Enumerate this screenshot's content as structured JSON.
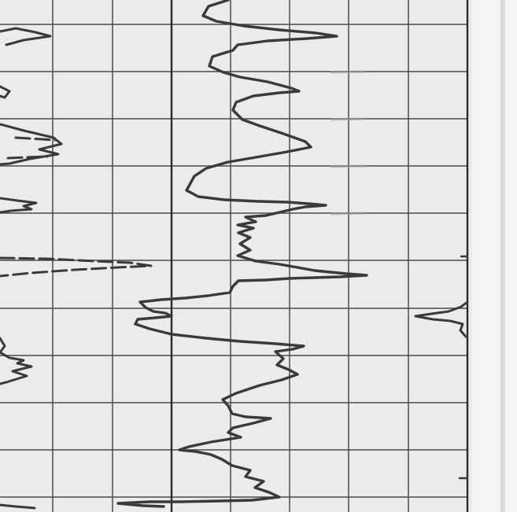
{
  "document": {
    "kind": "well-log-chart-scan",
    "colors": {
      "paper": "#ebebeb",
      "paper_margin": "#f4f4f4",
      "grid_line": "#4a4a4a",
      "heavy_grid_line": "#2a2a2a",
      "trace": "#3a3a3a"
    },
    "traces": [
      {
        "name": "trace-left-solid",
        "style": "solid"
      },
      {
        "name": "trace-left-dashed",
        "style": "dashed"
      },
      {
        "name": "trace-main-solid",
        "style": "solid"
      },
      {
        "name": "trace-right-solid",
        "style": "solid"
      }
    ]
  }
}
